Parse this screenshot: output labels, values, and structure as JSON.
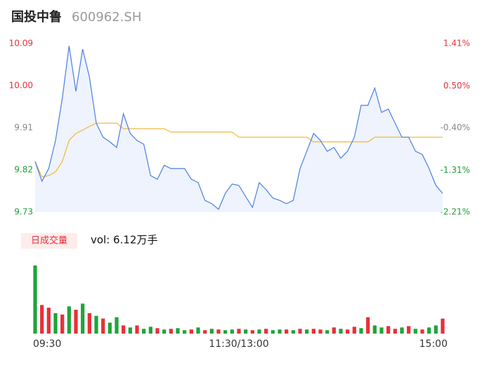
{
  "chart_data": {
    "type": "intraday",
    "title": "国投中鲁",
    "subtitle": "600962.SH",
    "x": [
      0,
      4,
      8,
      12,
      16,
      20,
      24,
      28,
      32,
      36,
      40,
      44,
      48,
      52,
      56,
      60,
      64,
      68,
      72,
      76,
      80,
      84,
      88,
      92,
      96,
      100,
      104,
      108,
      112,
      116,
      120,
      124,
      128,
      132,
      136,
      140,
      144,
      148,
      152,
      156,
      160,
      164,
      168,
      172,
      176,
      180,
      184,
      188,
      192,
      196,
      200,
      204,
      208,
      212,
      216,
      220,
      224,
      228,
      232,
      236,
      240
    ],
    "xlim": [
      0,
      240
    ],
    "xticks": [
      {
        "value": 0,
        "label": "09:30"
      },
      {
        "value": 120,
        "label": "11:30/13:00"
      },
      {
        "value": 240,
        "label": "15:00"
      }
    ],
    "series": [
      {
        "name": "price",
        "color": "#4a7fe0",
        "values": [
          9.838,
          9.796,
          9.823,
          9.883,
          9.973,
          10.085,
          9.988,
          10.078,
          10.018,
          9.92,
          9.89,
          9.88,
          9.868,
          9.94,
          9.898,
          9.883,
          9.875,
          9.808,
          9.8,
          9.83,
          9.823,
          9.823,
          9.823,
          9.8,
          9.793,
          9.755,
          9.748,
          9.736,
          9.77,
          9.79,
          9.787,
          9.763,
          9.74,
          9.793,
          9.778,
          9.76,
          9.755,
          9.748,
          9.755,
          9.823,
          9.86,
          9.898,
          9.883,
          9.86,
          9.868,
          9.845,
          9.86,
          9.89,
          9.958,
          9.958,
          9.995,
          9.943,
          9.95,
          9.92,
          9.89,
          9.89,
          9.86,
          9.853,
          9.823,
          9.787,
          9.77
        ]
      },
      {
        "name": "average",
        "color": "#f5b53a",
        "values": [
          9.838,
          9.805,
          9.808,
          9.816,
          9.838,
          9.883,
          9.898,
          9.905,
          9.913,
          9.92,
          9.92,
          9.92,
          9.92,
          9.908,
          9.908,
          9.908,
          9.908,
          9.908,
          9.908,
          9.908,
          9.901,
          9.901,
          9.901,
          9.901,
          9.901,
          9.901,
          9.901,
          9.901,
          9.901,
          9.901,
          9.89,
          9.89,
          9.89,
          9.89,
          9.89,
          9.89,
          9.89,
          9.89,
          9.89,
          9.89,
          9.89,
          9.88,
          9.88,
          9.88,
          9.88,
          9.88,
          9.88,
          9.88,
          9.88,
          9.88,
          9.89,
          9.89,
          9.89,
          9.89,
          9.89,
          9.89,
          9.89,
          9.89,
          9.89,
          9.89,
          9.89
        ]
      }
    ],
    "ylim": [
      9.73,
      10.09
    ],
    "yticks": [
      {
        "value": 10.09,
        "label": "10.09"
      },
      {
        "value": 10.0,
        "label": "10.00"
      },
      9.91,
      9.82,
      9.73
    ],
    "ytick_colors": [
      "#e8303a",
      "#e8303a",
      "#888888",
      "#1f9d3a",
      "#1f9d3a"
    ],
    "y2lim": [
      -2.21,
      1.41
    ],
    "y2ticks": [
      {
        "value": 1.41,
        "label": "1.41%"
      },
      {
        "value": 0.5,
        "label": "0.50%"
      },
      {
        "value": -0.4,
        "label": "-0.40%"
      },
      {
        "value": -1.31,
        "label": "-1.31%"
      },
      {
        "value": -2.21,
        "label": "-2.21%"
      }
    ],
    "volume_title": "日成交量",
    "volume_label": "vol: 6.12万手",
    "volume": [
      100,
      42,
      38,
      30,
      28,
      40,
      35,
      44,
      30,
      26,
      22,
      16,
      24,
      12,
      9,
      12,
      7,
      10,
      8,
      6,
      7,
      8,
      5,
      6,
      9,
      5,
      7,
      6,
      5,
      6,
      7,
      6,
      5,
      6,
      7,
      5,
      6,
      6,
      5,
      7,
      6,
      7,
      6,
      5,
      9,
      7,
      6,
      10,
      8,
      24,
      12,
      9,
      11,
      7,
      9,
      11,
      7,
      6,
      9,
      12,
      22
    ],
    "volume_rising": [
      false,
      true,
      true,
      false,
      true,
      false,
      true,
      false,
      true,
      false,
      true,
      false,
      false,
      true,
      false,
      true,
      false,
      false,
      true,
      false,
      true,
      false,
      false,
      true,
      false,
      true,
      false,
      true,
      false,
      false,
      true,
      false,
      true,
      false,
      true,
      false,
      false,
      true,
      false,
      true,
      false,
      true,
      true,
      false,
      true,
      false,
      true,
      true,
      false,
      true,
      false,
      false,
      true,
      true,
      false,
      true,
      false,
      true,
      false,
      false,
      true
    ],
    "up_color": "#e8303a",
    "down_color": "#1fa53a"
  }
}
